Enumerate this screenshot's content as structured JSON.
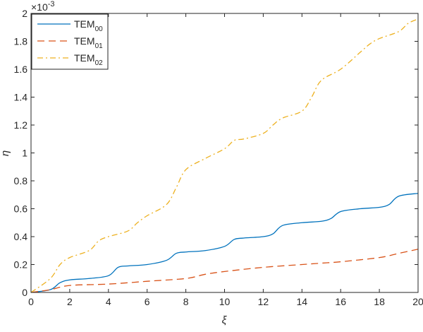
{
  "chart_data": {
    "type": "line",
    "title": "",
    "xlabel": "ξ",
    "ylabel": "η",
    "y_exponent_label": "×10",
    "y_exponent": "-3",
    "xlim": [
      0,
      20
    ],
    "ylim": [
      0,
      2
    ],
    "xticks": [
      "0",
      "2",
      "4",
      "6",
      "8",
      "10",
      "12",
      "14",
      "16",
      "18",
      "20"
    ],
    "yticks": [
      "0",
      "0.2",
      "0.4",
      "0.6",
      "0.8",
      "1",
      "1.2",
      "1.4",
      "1.6",
      "1.8",
      "2"
    ],
    "grid": false,
    "legend_position": "top-left",
    "series": [
      {
        "name": "TEM",
        "subscript": "00",
        "color": "#0072BD",
        "style": "solid",
        "x": [
          0,
          1,
          1.5,
          2,
          3,
          4,
          4.5,
          5,
          6,
          7,
          7.5,
          8,
          9,
          10,
          10.5,
          11,
          12,
          12.5,
          13,
          14,
          15,
          15.5,
          16,
          17,
          18,
          18.5,
          19,
          20
        ],
        "y": [
          0,
          0.02,
          0.07,
          0.09,
          0.1,
          0.12,
          0.18,
          0.19,
          0.2,
          0.23,
          0.28,
          0.29,
          0.3,
          0.33,
          0.38,
          0.39,
          0.4,
          0.42,
          0.48,
          0.5,
          0.51,
          0.53,
          0.58,
          0.6,
          0.61,
          0.63,
          0.69,
          0.71
        ]
      },
      {
        "name": "TEM",
        "subscript": "01",
        "color": "#D95319",
        "style": "dashed",
        "x": [
          0,
          1,
          2,
          4,
          6,
          8,
          9,
          10,
          12,
          14,
          15,
          16,
          18,
          19,
          20
        ],
        "y": [
          0,
          0.02,
          0.05,
          0.06,
          0.08,
          0.1,
          0.13,
          0.15,
          0.18,
          0.2,
          0.21,
          0.22,
          0.25,
          0.28,
          0.31
        ]
      },
      {
        "name": "TEM",
        "subscript": "02",
        "color": "#EDB120",
        "style": "dashdot",
        "x": [
          0,
          1,
          1.5,
          2,
          3,
          3.5,
          4,
          5,
          5.5,
          6,
          7,
          7.5,
          8,
          9,
          10,
          10.5,
          11,
          12,
          12.5,
          13,
          14,
          14.5,
          15,
          16,
          17,
          17.5,
          18,
          19,
          19.5,
          20
        ],
        "y": [
          0,
          0.1,
          0.2,
          0.25,
          0.3,
          0.37,
          0.4,
          0.44,
          0.5,
          0.55,
          0.63,
          0.75,
          0.88,
          0.96,
          1.03,
          1.09,
          1.1,
          1.14,
          1.2,
          1.25,
          1.3,
          1.4,
          1.52,
          1.6,
          1.72,
          1.78,
          1.82,
          1.87,
          1.93,
          1.96
        ]
      }
    ]
  }
}
